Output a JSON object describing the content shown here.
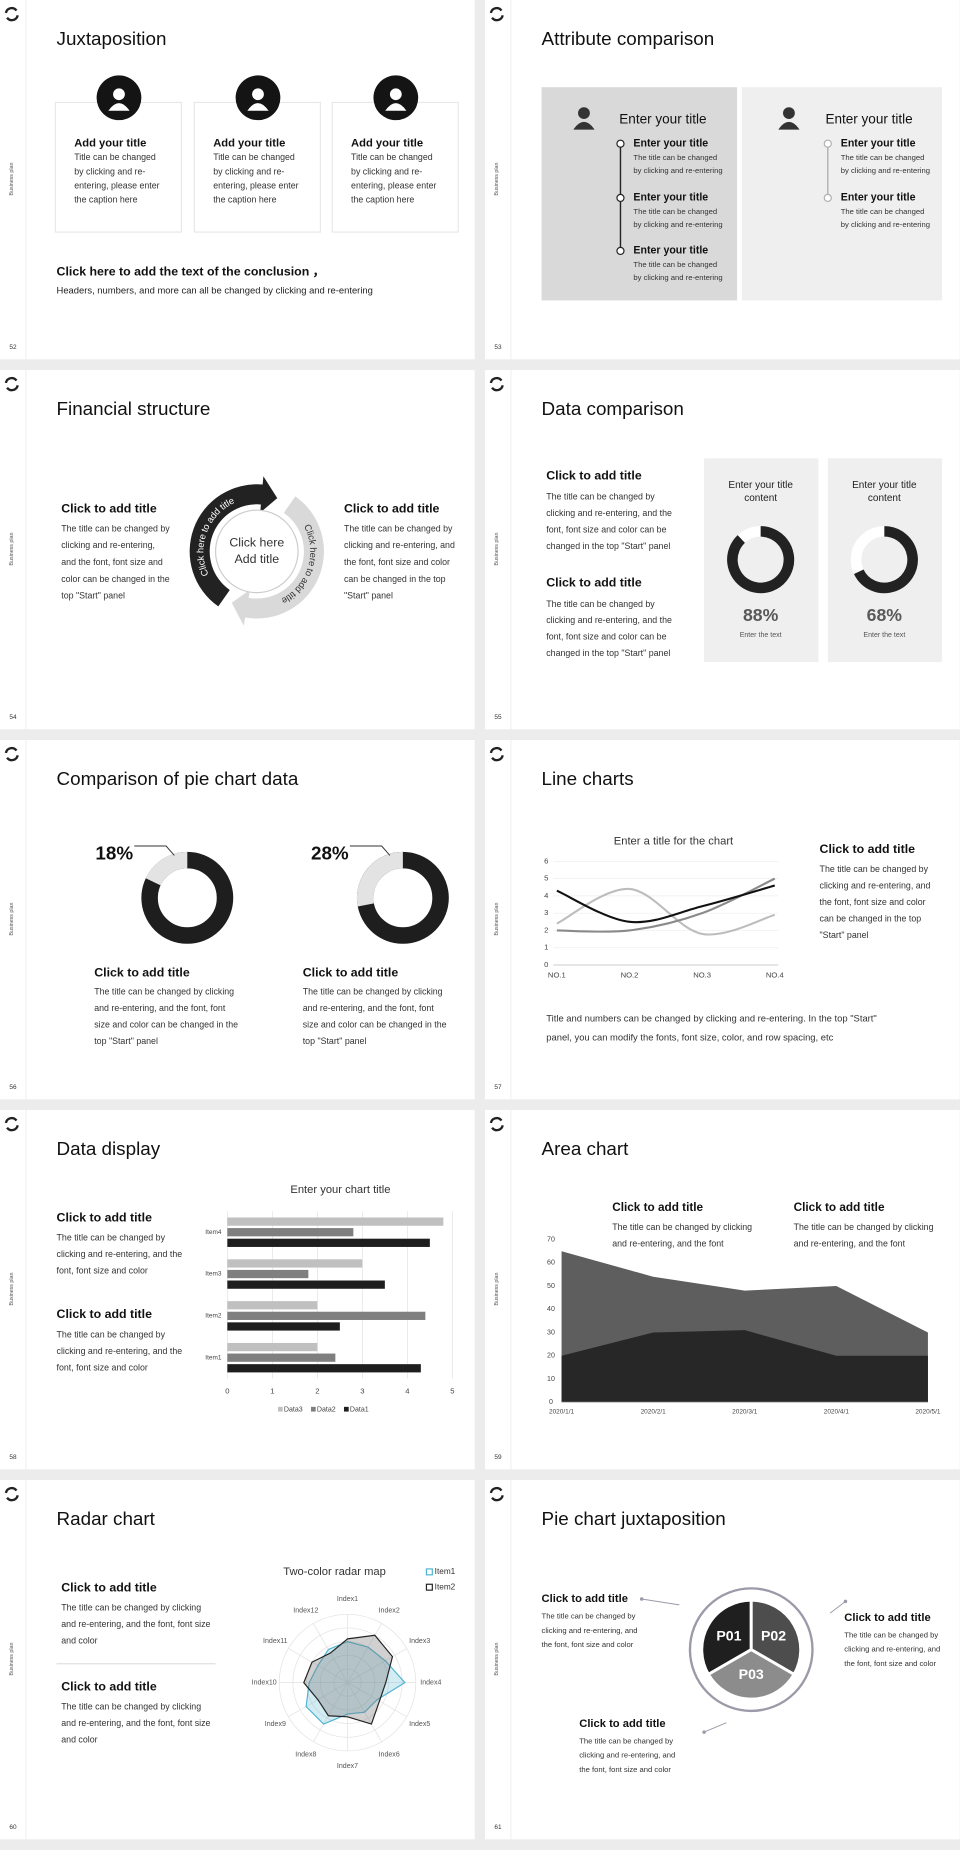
{
  "slides": [
    {
      "page": "52",
      "side": "Business plan",
      "title": "Juxtaposition",
      "cards": [
        {
          "title": "Add your title",
          "text": [
            "Title can be changed",
            "by clicking and re-",
            "entering, please enter",
            "the caption here"
          ]
        },
        {
          "title": "Add your title",
          "text": [
            "Title can be changed",
            "by clicking and re-",
            "entering, please enter",
            "the caption here"
          ]
        },
        {
          "title": "Add your title",
          "text": [
            "Title can be changed",
            "by clicking and re-",
            "entering, please enter",
            "the caption here"
          ]
        }
      ],
      "conclusion": {
        "title": "Click here to add the text of the conclusion ，",
        "text": "Headers, numbers, and more can all be changed by clicking and re-entering"
      }
    },
    {
      "page": "53",
      "side": "Business plan",
      "title": "Attribute comparison",
      "panels": [
        {
          "title": "Enter your title",
          "items": [
            {
              "title": "Enter your title",
              "text": [
                "The title can be changed",
                "by clicking and re-entering"
              ]
            },
            {
              "title": "Enter your title",
              "text": [
                "The title can be changed",
                "by clicking and re-entering"
              ]
            },
            {
              "title": "Enter your title",
              "text": [
                "The title can be changed",
                "by clicking and re-entering"
              ]
            }
          ]
        },
        {
          "title": "Enter your title",
          "items": [
            {
              "title": "Enter your title",
              "text": [
                "The title can be changed",
                "by clicking and re-entering"
              ]
            },
            {
              "title": "Enter your title",
              "text": [
                "The title can be changed",
                "by clicking and re-entering"
              ]
            }
          ]
        }
      ]
    },
    {
      "page": "54",
      "side": "Business plan",
      "title": "Financial structure",
      "blocks": [
        {
          "title": "Click to add title",
          "text": [
            "The title can be changed by",
            "clicking and re-entering,",
            "and the font, font size and",
            "color can be changed in the",
            "top \"Start\" panel"
          ]
        },
        {
          "title": "Click to add title",
          "text": [
            "The title can be changed by",
            "clicking and re-entering, and",
            "the font, font size and color",
            "can be changed in the top",
            "\"Start\" panel"
          ]
        }
      ],
      "center": [
        "Click here",
        "Add title"
      ],
      "arc_labels": [
        "Click here to add title",
        "Click here to add title"
      ]
    },
    {
      "page": "55",
      "side": "Business plan",
      "title": "Data comparison",
      "blocks": [
        {
          "title": "Click to add title",
          "text": [
            "The title can be changed by",
            "clicking and re-entering, and the",
            "font, font size and color can be",
            "changed in the top \"Start\" panel"
          ]
        },
        {
          "title": "Click to add title",
          "text": [
            "The title can be changed by",
            "clicking and re-entering, and the",
            "font, font size and color can be",
            "changed in the top \"Start\" panel"
          ]
        }
      ],
      "chart": {
        "type": "donut",
        "titles": [
          [
            "Enter your title",
            "content"
          ],
          [
            "Enter your title",
            "content"
          ]
        ],
        "values": [
          88,
          68
        ],
        "value_labels": [
          "88%",
          "68%"
        ],
        "captions": [
          "Enter the text",
          "Enter the text"
        ],
        "vlim": [
          0,
          100
        ],
        "color": "#222222"
      }
    },
    {
      "page": "56",
      "side": "Business plan",
      "title": "Comparison of pie chart data",
      "chart": {
        "type": "donut",
        "values": [
          18,
          28
        ],
        "value_labels": [
          "18%",
          "28%"
        ],
        "vlim": [
          0,
          100
        ],
        "color": "#e3e3e3"
      },
      "blocks": [
        {
          "title": "Click to add title",
          "text": [
            "The title can be changed by clicking",
            "and re-entering, and the font, font",
            "size and color can be changed in the",
            "top \"Start\" panel"
          ]
        },
        {
          "title": "Click to add title",
          "text": [
            "The title can be changed by clicking",
            "and re-entering, and the font, font",
            "size and color can be changed in the",
            "top \"Start\" panel"
          ]
        }
      ]
    },
    {
      "page": "57",
      "side": "Business plan",
      "title": "Line charts",
      "chart": {
        "type": "line",
        "title": "Enter a title for the chart",
        "categories": [
          "NO.1",
          "NO.2",
          "NO.3",
          "NO.4"
        ],
        "series": [
          {
            "color": "#bdbdbd",
            "values": [
              2.4,
              4.4,
              1.8,
              2.9
            ]
          },
          {
            "color": "#8a8a8a",
            "values": [
              2.0,
              2.0,
              3.0,
              5.0
            ]
          },
          {
            "color": "#111111",
            "values": [
              4.3,
              2.5,
              3.4,
              4.6
            ]
          }
        ],
        "ylim": [
          0,
          6
        ],
        "yticks": [
          0,
          1,
          2,
          3,
          4,
          5,
          6
        ],
        "grid": true
      },
      "block": {
        "title": "Click to add title",
        "text": [
          "The title can be changed by",
          "clicking and re-entering, and",
          "the font, font size and color",
          "can be changed in the top",
          "\"Start\" panel"
        ]
      },
      "note": [
        "Title and numbers can be changed by clicking and re-entering. In the top \"Start\"",
        "panel, you can modify the fonts, font size, color, and row spacing, etc"
      ]
    },
    {
      "page": "58",
      "side": "Business plan",
      "title": "Data display",
      "blocks": [
        {
          "title": "Click to add title",
          "text": [
            "The title can be changed by",
            "clicking and re-entering, and the",
            "font, font size and color"
          ]
        },
        {
          "title": "Click to add title",
          "text": [
            "The title can be changed by",
            "clicking and re-entering, and the",
            "font, font size and color"
          ]
        }
      ],
      "chart": {
        "type": "bar",
        "orientation": "horizontal",
        "title": "Enter your chart title",
        "categories": [
          "Item1",
          "Item2",
          "Item3",
          "Item4"
        ],
        "series": [
          {
            "name": "Data1",
            "color": "#1e1e1e",
            "values": [
              4.3,
              2.5,
              3.5,
              4.5
            ]
          },
          {
            "name": "Data2",
            "color": "#7f7f7f",
            "values": [
              2.4,
              4.4,
              1.8,
              2.8
            ]
          },
          {
            "name": "Data3",
            "color": "#c0c0c0",
            "values": [
              2.0,
              2.0,
              3.0,
              4.8
            ]
          }
        ],
        "xlim": [
          0,
          5
        ],
        "xticks": [
          0,
          1,
          2,
          3,
          4,
          5
        ],
        "grid": true
      }
    },
    {
      "page": "59",
      "side": "Business plan",
      "title": "Area chart",
      "blocks": [
        {
          "title": "Click to add title",
          "text": [
            "The title can be changed by clicking",
            "and re-entering, and the font"
          ]
        },
        {
          "title": "Click to add title",
          "text": [
            "The title can be changed by clicking",
            "and re-entering, and the font"
          ]
        }
      ],
      "chart": {
        "type": "area",
        "x": [
          "2020/1/1",
          "2020/2/1",
          "2020/3/1",
          "2020/4/1",
          "2020/5/1"
        ],
        "series": [
          {
            "color": "#5f5e5e",
            "values": [
              65,
              54,
              48,
              50,
              30
            ]
          },
          {
            "color": "#272727",
            "values": [
              20,
              30,
              31,
              20,
              20
            ]
          }
        ],
        "ylim": [
          0,
          70
        ],
        "yticks": [
          0,
          10,
          20,
          30,
          40,
          50,
          60,
          70
        ]
      }
    },
    {
      "page": "60",
      "side": "Business plan",
      "title": "Radar chart",
      "blocks": [
        {
          "title": "Click to add title",
          "text": [
            "The title can be changed by clicking",
            "and re-entering, and the font, font size",
            "and color"
          ]
        },
        {
          "title": "Click to add title",
          "text": [
            "The title can be changed by clicking",
            "and re-entering, and the font, font size",
            "and color"
          ]
        }
      ],
      "chart": {
        "type": "radar",
        "title": "Two-color radar map",
        "categories": [
          "Index1",
          "Index2",
          "Index3",
          "Index4",
          "Index5",
          "Index6",
          "Index7",
          "Index8",
          "Index9",
          "Index10",
          "Index11",
          "Index12"
        ],
        "series": [
          {
            "name": "Item1",
            "color": "#4fb3cf",
            "values": [
              3,
              3,
              3.2,
              4.2,
              2.5,
              2.5,
              2.3,
              3.5,
              3.5,
              2.8,
              2.5,
              2.8
            ]
          },
          {
            "name": "Item2",
            "color": "#222222",
            "values": [
              3.2,
              4,
              3.8,
              2.8,
              2.7,
              3.5,
              2.5,
              2.8,
              2.5,
              3.2,
              3,
              2.5
            ]
          }
        ],
        "rlim": [
          0,
          5
        ]
      }
    },
    {
      "page": "61",
      "side": "Business plan",
      "title": "Pie chart juxtaposition",
      "segments": [
        "P01",
        "P02",
        "P03"
      ],
      "blocks": [
        {
          "title": "Click to add title",
          "text": [
            "The title can be changed by",
            "clicking and re-entering, and",
            "the font, font size and color"
          ]
        },
        {
          "title": "Click to add title",
          "text": [
            "The title can be changed by",
            "clicking and re-entering, and",
            "the font, font size and color"
          ]
        },
        {
          "title": "Click to add title",
          "text": [
            "The title can be changed by",
            "clicking and re-entering, and",
            "the font, font size and color"
          ]
        }
      ]
    }
  ]
}
